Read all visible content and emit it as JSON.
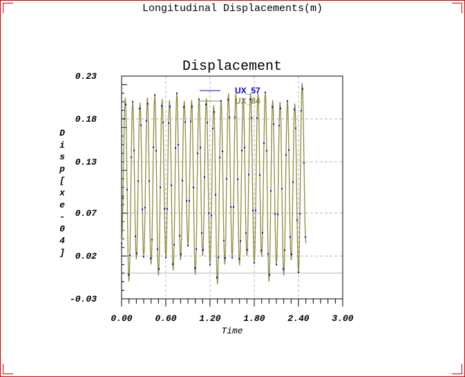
{
  "page": {
    "title": "Longitudinal Displacements(m)"
  },
  "chart_data": {
    "type": "line",
    "title": "Displacement",
    "xlabel": "Time",
    "ylabel": "Disp[xe-04]",
    "xlim": [
      0,
      3.0
    ],
    "ylim": [
      -0.03,
      0.23
    ],
    "xticks": [
      "0.00",
      "0.60",
      "1.20",
      "1.80",
      "2.40",
      "3.00"
    ],
    "yticks": [
      "-0.03",
      "0.02",
      "0.07",
      "0.13",
      "0.18",
      "0.23"
    ],
    "grid": true,
    "legend_position": "top-center",
    "x_step": 0.1,
    "peaks": [
      0.205,
      0.2,
      0.199,
      0.205,
      0.208,
      0.203,
      0.202,
      0.21,
      0.201,
      0.202,
      0.203,
      0.204,
      0.196,
      0.201,
      0.21,
      0.21,
      0.203,
      0.21,
      0.21,
      0.211,
      0.202,
      0.2,
      0.201,
      0.198,
      0.222
    ],
    "troughs": [
      0.035,
      -0.01,
      0.016,
      0.019,
      0.01,
      -0.003,
      0.018,
      0.003,
      0.015,
      0.032,
      -0.002,
      0.02,
      0.01,
      -0.013,
      0.01,
      0.018,
      0.009,
      0.02,
      0.012,
      0.019,
      -0.01,
      0.01,
      -0.003,
      0.015,
      0.001
    ],
    "series": [
      {
        "name": "UX_57",
        "color": "#0000cc"
      },
      {
        "name": "UX_84",
        "color": "#8b8b3c"
      }
    ]
  }
}
